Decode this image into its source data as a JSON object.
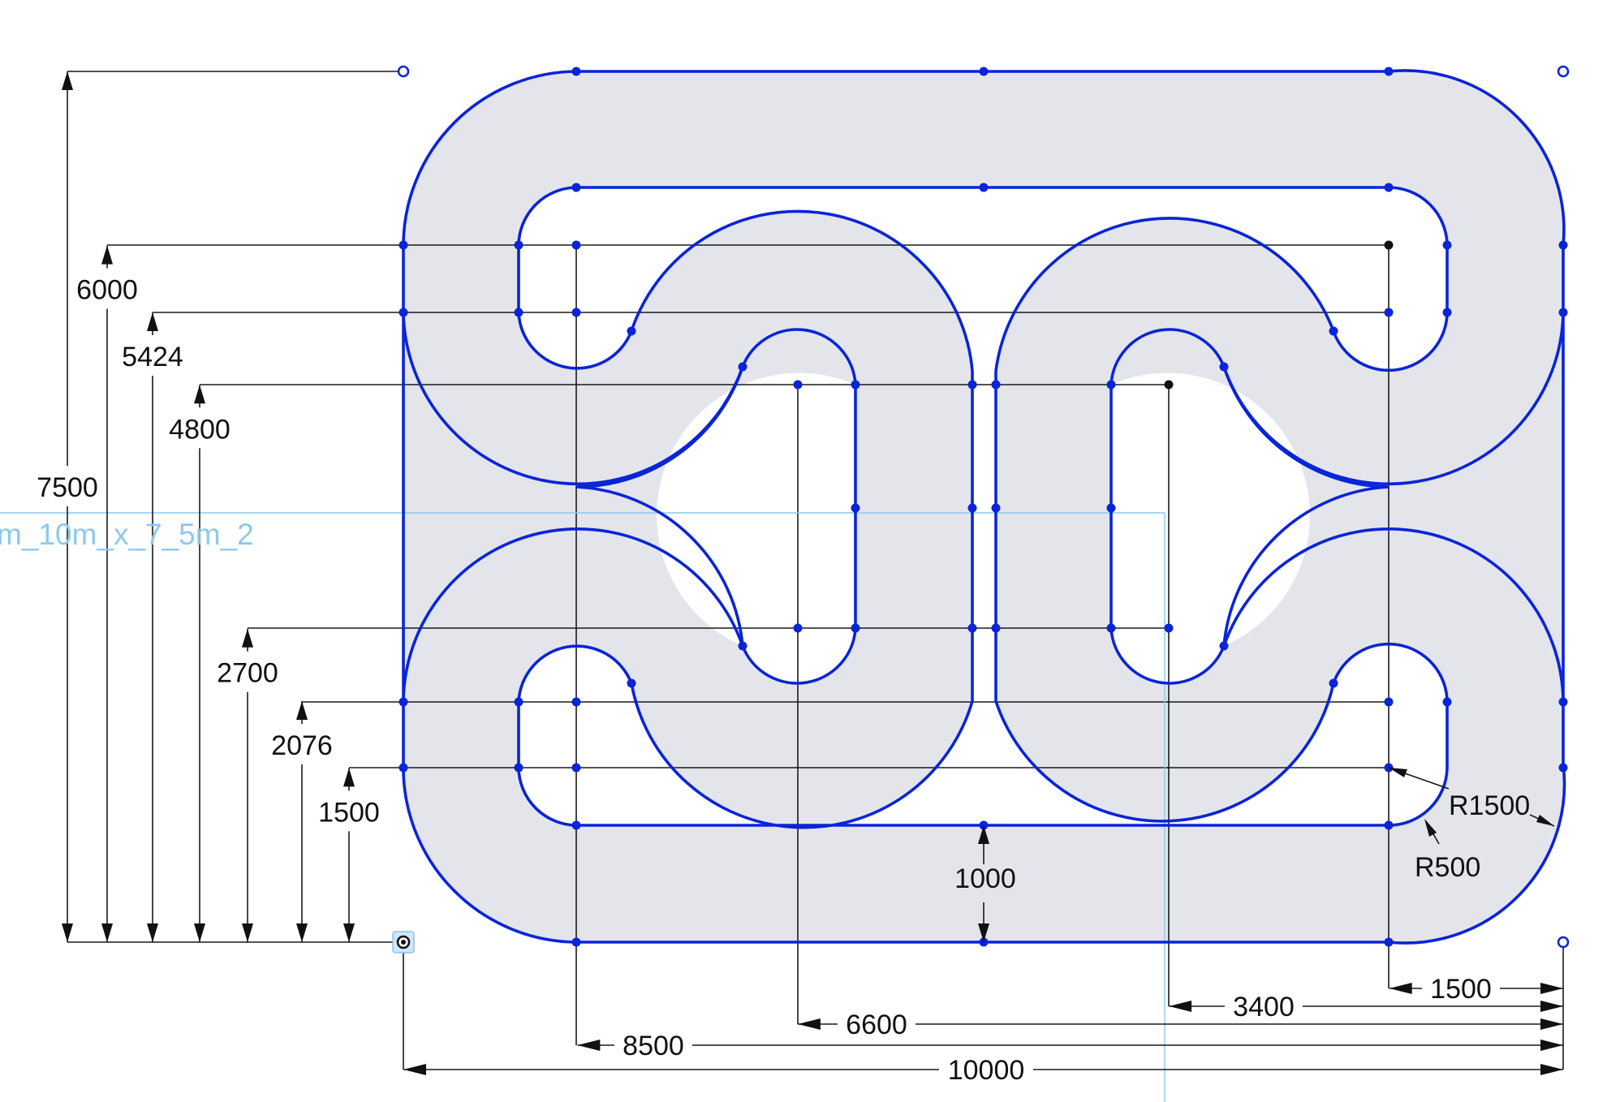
{
  "sketch_name": "m_10m_x_7_5m_2",
  "colors": {
    "track_stroke": "#0a24d8",
    "track_fill": "#e3e5ea",
    "dimension": "#111111",
    "selection": "#8cc9ee"
  },
  "vertical_dimensions": [
    {
      "key": "v7500",
      "value": 7500,
      "label": "7500"
    },
    {
      "key": "v6000",
      "value": 6000,
      "label": "6000"
    },
    {
      "key": "v5424",
      "value": 5424,
      "label": "5424"
    },
    {
      "key": "v4800",
      "value": 4800,
      "label": "4800"
    },
    {
      "key": "v2700",
      "value": 2700,
      "label": "2700"
    },
    {
      "key": "v2076",
      "value": 2076,
      "label": "2076"
    },
    {
      "key": "v1500",
      "value": 1500,
      "label": "1500"
    }
  ],
  "horizontal_dimensions": [
    {
      "key": "h1500",
      "value": 1500,
      "label": "1500"
    },
    {
      "key": "h3400",
      "value": 3400,
      "label": "3400"
    },
    {
      "key": "h6600",
      "value": 6600,
      "label": "6600"
    },
    {
      "key": "h8500",
      "value": 8500,
      "label": "8500"
    },
    {
      "key": "h10000",
      "value": 10000,
      "label": "10000"
    }
  ],
  "other_dimensions": {
    "gap": {
      "value": 1000,
      "label": "1000"
    },
    "outer_radius": {
      "value": 1500,
      "label": "R1500"
    },
    "inner_radius": {
      "value": 500,
      "label": "R500"
    }
  }
}
